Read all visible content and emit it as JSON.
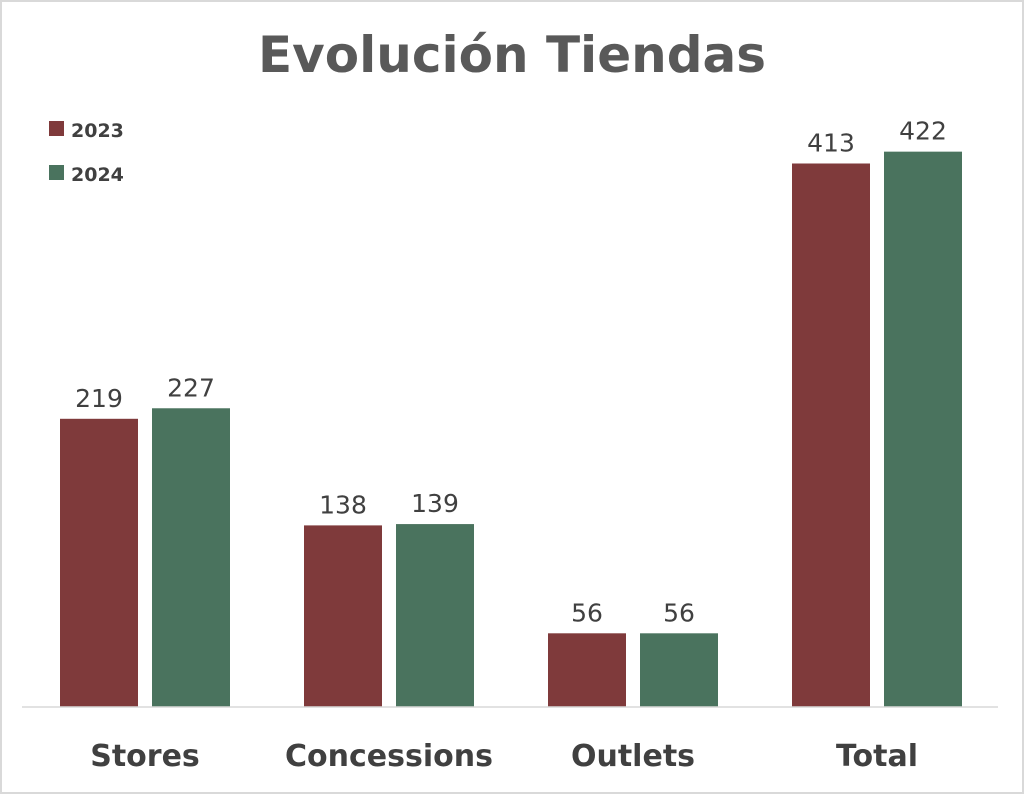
{
  "chart_data": {
    "type": "bar",
    "title": "Evolución Tiendas",
    "categories": [
      "Stores",
      "Concessions",
      "Outlets",
      "Total"
    ],
    "series": [
      {
        "name": "2023",
        "values": [
          219,
          138,
          56,
          413
        ],
        "color": "#7f3a3b"
      },
      {
        "name": "2024",
        "values": [
          227,
          139,
          56,
          422
        ],
        "color": "#4a735e"
      }
    ],
    "xlabel": "",
    "ylabel": "",
    "ylim": [
      0,
      440
    ],
    "grid": false,
    "data_labels": true,
    "legend_position": "top-left",
    "axis_line_color": "#d9d9d9"
  }
}
